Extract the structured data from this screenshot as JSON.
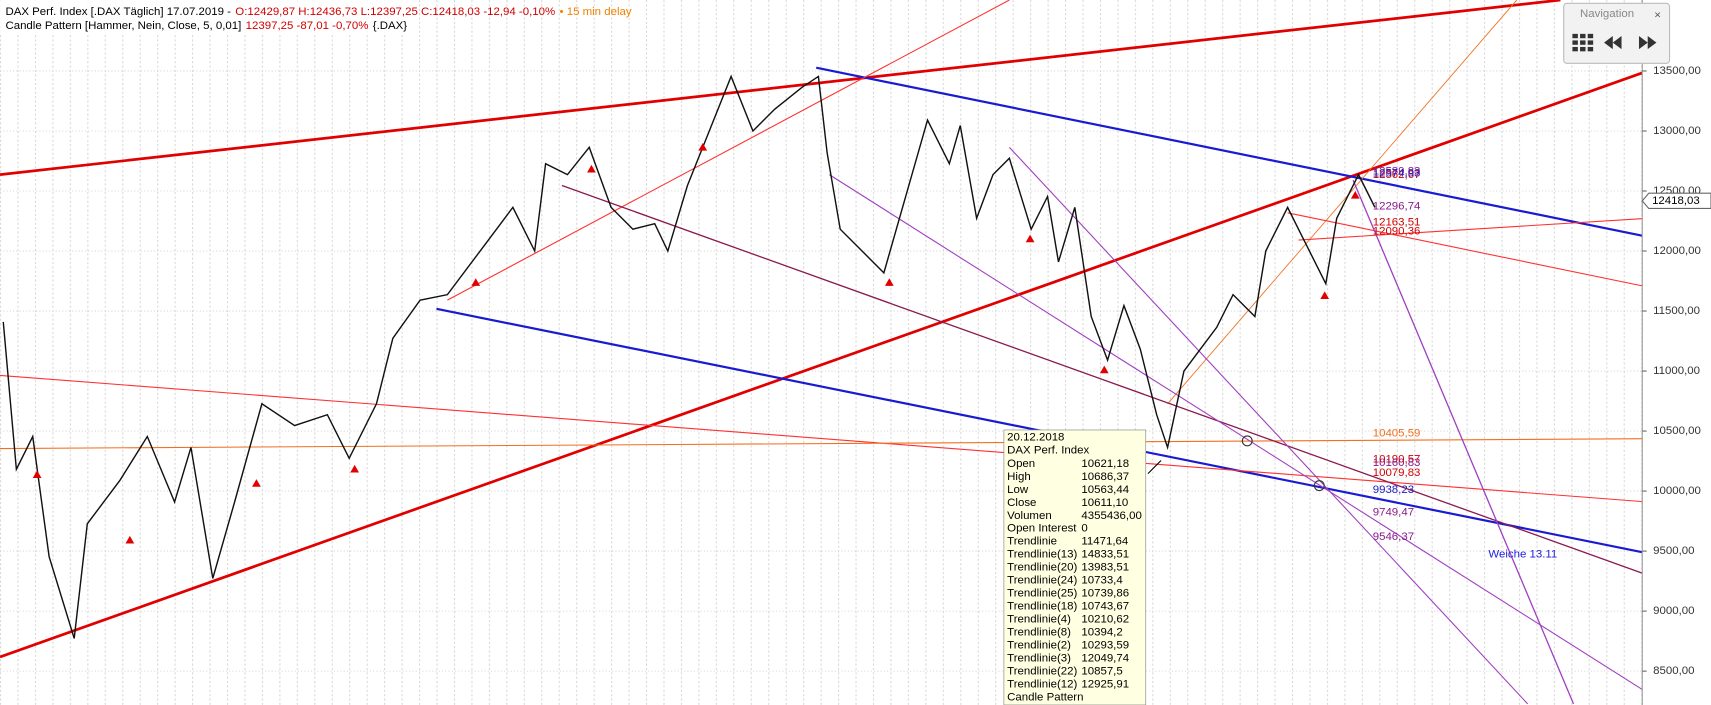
{
  "header": {
    "line1": [
      {
        "text": "DAX Perf. Index [.DAX Täglich] 17.07.2019 -",
        "color": "#000000"
      },
      {
        "text": "O:12429,87 H:12436,73 L:12397,25 C:12418,03 -12,94 -0,10%",
        "color": "#d00000"
      },
      {
        "text": "• 15 min delay",
        "color": "#f08000"
      }
    ],
    "line2": [
      {
        "text": "Candle Pattern [Hammer, Nein, Close, 5, 0,01]",
        "color": "#000000"
      },
      {
        "text": "12397,25 -87,01 -0,70%",
        "color": "#d00000"
      },
      {
        "text": "{.DAX}",
        "color": "#000000"
      }
    ]
  },
  "price_axis": {
    "ylim": [
      8360,
      14090
    ],
    "ticks": [
      {
        "value": 13500,
        "label": "13500,00"
      },
      {
        "value": 13000,
        "label": "13000,00"
      },
      {
        "value": 12500,
        "label": "12500,00"
      },
      {
        "value": 12000,
        "label": "12000,00"
      },
      {
        "value": 11500,
        "label": "11500,00"
      },
      {
        "value": 11000,
        "label": "11000,00"
      },
      {
        "value": 10500,
        "label": "10500,00"
      },
      {
        "value": 10000,
        "label": "10000,00"
      },
      {
        "value": 9500,
        "label": "9500,00"
      },
      {
        "value": 9000,
        "label": "9000,00"
      },
      {
        "value": 8500,
        "label": "8500,00"
      }
    ],
    "current": {
      "value": 12418.03,
      "label": "12418,03"
    }
  },
  "line_labels": [
    {
      "label": "12562,67",
      "value": 12562.67,
      "color": "#d00000"
    },
    {
      "label": "12589,83",
      "value": 12589.83,
      "color": "#8a1a8a"
    },
    {
      "label": "12574,93",
      "value": 12574.93,
      "color": "#2020c0"
    },
    {
      "label": "12296,74",
      "value": 12296.74,
      "color": "#8a1a8a"
    },
    {
      "label": "12163,51",
      "value": 12163.51,
      "color": "#d00000"
    },
    {
      "label": "12090,36",
      "value": 12090.36,
      "color": "#d00000"
    },
    {
      "label": "10405,59",
      "value": 10405.59,
      "color": "#f07020"
    },
    {
      "label": "10190,57",
      "value": 10190.57,
      "color": "#d00000"
    },
    {
      "label": "10160,83",
      "value": 10160.83,
      "color": "#8a1a8a"
    },
    {
      "label": "10079,83",
      "value": 10079.83,
      "color": "#d00000"
    },
    {
      "label": "9938,23",
      "value": 9938.23,
      "color": "#2020c0"
    },
    {
      "label": "9749,47",
      "value": 9749.47,
      "color": "#8a1a8a"
    },
    {
      "label": "9546,37",
      "value": 9546.37,
      "color": "#8a1a8a"
    }
  ],
  "annotation": "Weiche 13.11",
  "tooltip": {
    "date": "20.12.2018",
    "instrument": "DAX Perf. Index",
    "rows": [
      [
        "Open",
        "10621,18"
      ],
      [
        "High",
        "10686,37"
      ],
      [
        "Low",
        "10563,44"
      ],
      [
        "Close",
        "10611,10"
      ],
      [
        "Volumen",
        "4355436,00"
      ],
      [
        "Open Interest",
        "0"
      ],
      [
        "Trendlinie",
        "11471,64"
      ],
      [
        "Trendlinie(13)",
        "14833,51"
      ],
      [
        "Trendlinie(20)",
        "13983,51"
      ],
      [
        "Trendlinie(24)",
        "10733,4"
      ],
      [
        "Trendlinie(25)",
        "10739,86"
      ],
      [
        "Trendlinie(18)",
        "10743,67"
      ],
      [
        "Trendlinie(4)",
        "10210,62"
      ],
      [
        "Trendlinie(8)",
        "10394,2"
      ],
      [
        "Trendlinie(2)",
        "10293,59"
      ],
      [
        "Trendlinie(3)",
        "12049,74"
      ],
      [
        "Trendlinie(22)",
        "10857,5"
      ],
      [
        "Trendlinie(12)",
        "12925,91"
      ]
    ],
    "footer": "Candle Pattern"
  },
  "navigation": {
    "title": "Navigation",
    "close": "×"
  }
}
